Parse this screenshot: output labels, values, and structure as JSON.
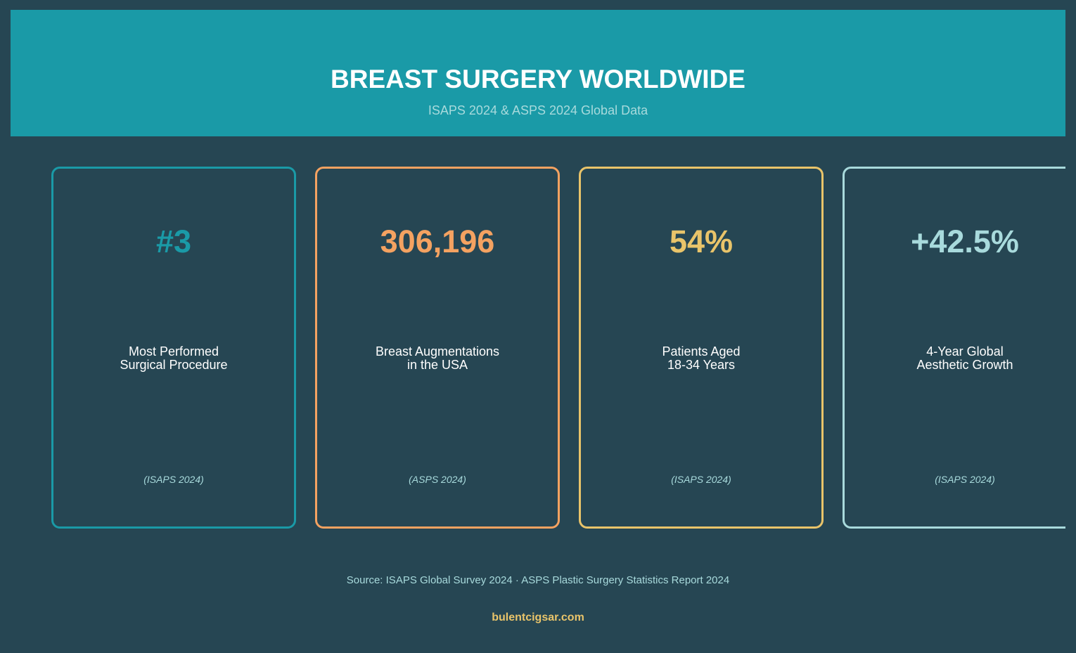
{
  "header": {
    "title": "BREAST SURGERY WORLDWIDE",
    "subtitle": "ISAPS 2024 & ASPS 2024 Global Data",
    "background": "#1a9aa7"
  },
  "cards": [
    {
      "value": "#3",
      "label_line1": "Most Performed",
      "label_line2": "Surgical Procedure",
      "source": "(ISAPS 2024)",
      "color": "#1a9aa7"
    },
    {
      "value": "306,196",
      "label_line1": "Breast Augmentations",
      "label_line2": "in the USA",
      "source": "(ASPS 2024)",
      "color": "#f4a261"
    },
    {
      "value": "54%",
      "label_line1": "Patients Aged",
      "label_line2": "18-34 Years",
      "source": "(ISAPS 2024)",
      "color": "#e9c46a"
    },
    {
      "value": "+42.5%",
      "label_line1": "4-Year Global",
      "label_line2": "Aesthetic Growth",
      "source": "(ISAPS 2024)",
      "color": "#a8dadc"
    }
  ],
  "footer": {
    "source": "Source: ISAPS Global Survey 2024 · ASPS Plastic Surgery Statistics Report 2024",
    "site": "bulentcigsar.com"
  },
  "colors": {
    "background": "#264653",
    "text": "#ffffff",
    "muted": "#a8dadc"
  }
}
